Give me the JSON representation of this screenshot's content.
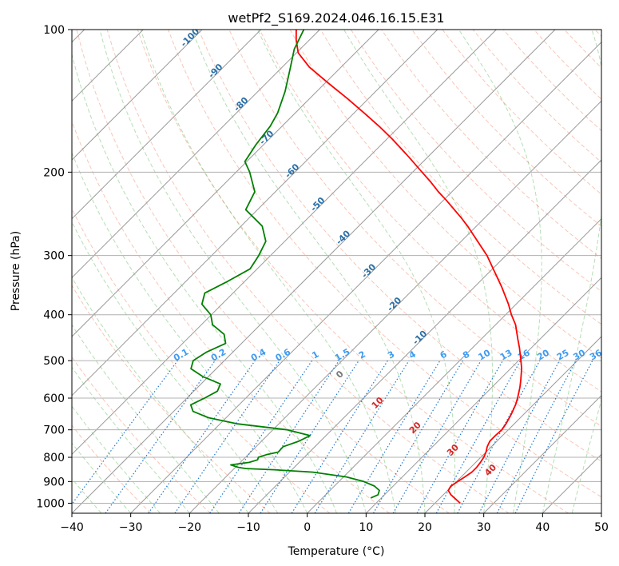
{
  "chart_data": {
    "type": "line",
    "subtype": "skew-t log-p",
    "title": "wetPf2_S169.2024.046.16.15.E31",
    "xlabel": "Temperature (°C)",
    "ylabel": "Pressure (hPa)",
    "xlim": [
      -40,
      50
    ],
    "ylim": [
      1050,
      100
    ],
    "y_scale": "log",
    "grid": true,
    "x_ticks": [
      "−40",
      "−30",
      "−20",
      "−10",
      "0",
      "10",
      "20",
      "30",
      "40",
      "50"
    ],
    "y_ticks": [
      "100",
      "200",
      "300",
      "400",
      "500",
      "600",
      "700",
      "800",
      "900",
      "1000"
    ],
    "series": [
      {
        "color": "#ff0000",
        "points": [
          [
            1000,
            24.3
          ],
          [
            980,
            22.8
          ],
          [
            960,
            21.3
          ],
          [
            940,
            20.1
          ],
          [
            920,
            19.8
          ],
          [
            900,
            20.2
          ],
          [
            880,
            20.6
          ],
          [
            860,
            21.0
          ],
          [
            840,
            21.0
          ],
          [
            820,
            20.8
          ],
          [
            800,
            20.5
          ],
          [
            780,
            20.0
          ],
          [
            760,
            19.3
          ],
          [
            740,
            18.8
          ],
          [
            720,
            18.8
          ],
          [
            700,
            18.9
          ],
          [
            680,
            18.6
          ],
          [
            650,
            17.9
          ],
          [
            620,
            17.0
          ],
          [
            600,
            16.2
          ],
          [
            570,
            14.8
          ],
          [
            550,
            13.7
          ],
          [
            520,
            11.9
          ],
          [
            500,
            10.4
          ],
          [
            470,
            8.0
          ],
          [
            450,
            6.2
          ],
          [
            420,
            3.4
          ],
          [
            400,
            1.0
          ],
          [
            380,
            -1.3
          ],
          [
            350,
            -5.3
          ],
          [
            320,
            -9.9
          ],
          [
            300,
            -13.2
          ],
          [
            280,
            -17.2
          ],
          [
            260,
            -21.5
          ],
          [
            250,
            -23.9
          ],
          [
            230,
            -29.3
          ],
          [
            220,
            -32.3
          ],
          [
            210,
            -35.2
          ],
          [
            200,
            -38.4
          ],
          [
            185,
            -43.5
          ],
          [
            170,
            -49.2
          ],
          [
            160,
            -53.5
          ],
          [
            150,
            -58.3
          ],
          [
            140,
            -63.5
          ],
          [
            130,
            -69.3
          ],
          [
            120,
            -75.4
          ],
          [
            112,
            -79.7
          ],
          [
            105,
            -82.3
          ],
          [
            100,
            -84.0
          ]
        ]
      },
      {
        "color": "#008000",
        "points": [
          [
            975,
            8.2
          ],
          [
            960,
            8.9
          ],
          [
            940,
            8.4
          ],
          [
            920,
            6.8
          ],
          [
            900,
            4.2
          ],
          [
            880,
            0.5
          ],
          [
            860,
            -6.0
          ],
          [
            850,
            -13.0
          ],
          [
            845,
            -18.0
          ],
          [
            840,
            -19.5
          ],
          [
            830,
            -21.2
          ],
          [
            820,
            -18.5
          ],
          [
            810,
            -17.5
          ],
          [
            800,
            -17.8
          ],
          [
            790,
            -16.9
          ],
          [
            780,
            -15.3
          ],
          [
            760,
            -15.4
          ],
          [
            740,
            -13.7
          ],
          [
            720,
            -12.7
          ],
          [
            700,
            -17.5
          ],
          [
            680,
            -27.0
          ],
          [
            660,
            -33.0
          ],
          [
            640,
            -36.7
          ],
          [
            620,
            -38.2
          ],
          [
            600,
            -37.0
          ],
          [
            580,
            -36.0
          ],
          [
            560,
            -36.7
          ],
          [
            540,
            -41.0
          ],
          [
            520,
            -44.3
          ],
          [
            500,
            -45.3
          ],
          [
            480,
            -44.5
          ],
          [
            460,
            -42.7
          ],
          [
            440,
            -44.5
          ],
          [
            420,
            -48.1
          ],
          [
            400,
            -50.1
          ],
          [
            380,
            -53.4
          ],
          [
            360,
            -54.8
          ],
          [
            340,
            -52.9
          ],
          [
            320,
            -51.2
          ],
          [
            300,
            -52.0
          ],
          [
            280,
            -53.2
          ],
          [
            260,
            -56.4
          ],
          [
            240,
            -62.0
          ],
          [
            220,
            -63.5
          ],
          [
            200,
            -67.7
          ],
          [
            190,
            -70.3
          ],
          [
            175,
            -71.3
          ],
          [
            160,
            -72.0
          ],
          [
            150,
            -73.0
          ],
          [
            135,
            -75.4
          ],
          [
            120,
            -78.6
          ],
          [
            110,
            -81.0
          ],
          [
            100,
            -82.7
          ]
        ]
      }
    ],
    "dry_adiabat_labels": [
      "-100",
      "-90",
      "-80",
      "-70",
      "-60",
      "-50",
      "-40",
      "-30",
      "-20",
      "-10"
    ],
    "mixing_ratio_labels": [
      "0.1",
      "0.2",
      "0.4",
      "0.6",
      "1",
      "1.5",
      "2",
      "3",
      "4",
      "6",
      "8",
      "10",
      "13",
      "16",
      "20",
      "25",
      "30",
      "36"
    ],
    "moist_adiabat_labels": [
      "0",
      "10",
      "20",
      "30",
      "40"
    ]
  }
}
